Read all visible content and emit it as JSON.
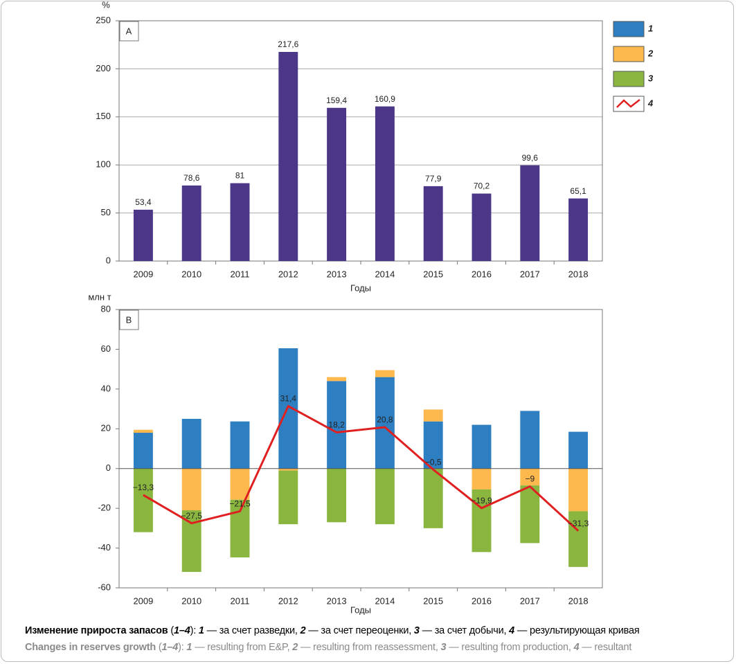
{
  "chart_data": [
    {
      "type": "bar",
      "panel_label": "A",
      "unit": "%",
      "x_label": "Годы",
      "categories": [
        "2009",
        "2010",
        "2011",
        "2012",
        "2013",
        "2014",
        "2015",
        "2016",
        "2017",
        "2018"
      ],
      "values": [
        53.4,
        78.6,
        81,
        217.6,
        159.4,
        160.9,
        77.9,
        70.2,
        99.6,
        65.1
      ],
      "value_labels": [
        "53,4",
        "78,6",
        "81",
        "217,6",
        "159,4",
        "160,9",
        "77,9",
        "70,2",
        "99,6",
        "65,1"
      ],
      "color": "#4b3687",
      "ylim": [
        0,
        250
      ],
      "yticks": [
        0,
        50,
        100,
        150,
        200,
        250
      ],
      "grid": true
    },
    {
      "type": "bar",
      "stacked": true,
      "panel_label": "B",
      "unit": "млн т",
      "x_label": "Годы",
      "categories": [
        "2009",
        "2010",
        "2011",
        "2012",
        "2013",
        "2014",
        "2015",
        "2016",
        "2017",
        "2018"
      ],
      "series": [
        {
          "name": "1",
          "color": "#2e7fc1",
          "values": [
            18,
            25,
            23.7,
            60.5,
            44,
            46,
            23.7,
            22,
            29,
            18.5
          ]
        },
        {
          "name": "2",
          "color": "#fdb94d",
          "values": [
            1.5,
            -21,
            -15.7,
            -1,
            2,
            3.5,
            6,
            -10.5,
            -8.5,
            -21.5
          ]
        },
        {
          "name": "3",
          "color": "#8ab53f",
          "values": [
            -32,
            -31,
            -29,
            -27,
            -27,
            -28,
            -30,
            -31.5,
            -29,
            -28
          ]
        },
        {
          "name": "4",
          "color": "#e02020",
          "type": "line",
          "values": [
            -13.3,
            -27.5,
            -21.5,
            31.4,
            18.2,
            20.8,
            -0.5,
            -19.9,
            -9,
            -31.3
          ],
          "value_labels": [
            "−13,3",
            "−27,5",
            "−21,5",
            "31,4",
            "18,2",
            "20,8",
            "−0,5",
            "−19,9",
            "−9",
            "−31,3"
          ]
        }
      ],
      "ylim": [
        -60,
        80
      ],
      "yticks": [
        -60,
        -40,
        -20,
        0,
        20,
        40,
        60,
        80
      ],
      "grid": false,
      "legend": "right"
    }
  ],
  "caption": {
    "ru": [
      "Изменение прироста запасов",
      " (",
      "1–4",
      "): ",
      "1",
      " — за счет разведки, ",
      "2",
      " — за счет переоценки, ",
      "3",
      " — за счет добычи, ",
      "4",
      " — результирующая кривая"
    ],
    "en": [
      "Changes in reserves growth",
      " (",
      "1–4",
      "): ",
      "1",
      " — resulting from E&P, ",
      "2",
      " — resulting from reassessment, ",
      "3",
      " — resulting from production, ",
      "4",
      " — resultant"
    ]
  }
}
